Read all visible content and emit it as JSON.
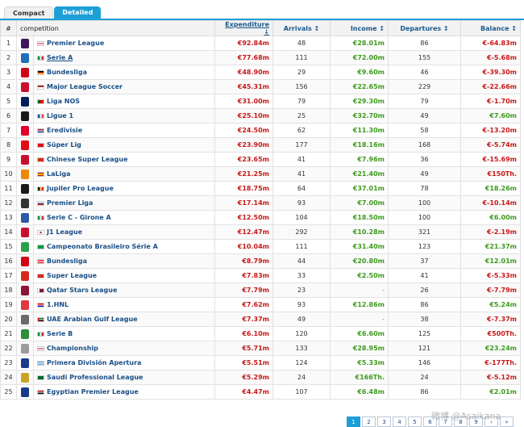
{
  "tabs": [
    "Compact",
    "Detailed"
  ],
  "headers": {
    "rank": "#",
    "competition": "competition",
    "expenditure": "Expenditure ↓",
    "arrivals": "Arrivals ↕",
    "income": "Income ↕",
    "departures": "Departures ↕",
    "balance": "Balance ↕"
  },
  "rows": [
    {
      "rank": "1",
      "name": "Premier League",
      "flag": "england",
      "logo": "#3d195b",
      "expenditure": "€92.84m",
      "arrivals": "48",
      "income": "€28.01m",
      "departures": "86",
      "balance": "€-64.83m",
      "bal": "neg"
    },
    {
      "rank": "2",
      "name": "Serie A",
      "flag": "italy",
      "logo": "#1f6fb8",
      "expenditure": "€77.68m",
      "arrivals": "111",
      "income": "€72.00m",
      "departures": "155",
      "balance": "€-5.68m",
      "bal": "neg",
      "ul": true
    },
    {
      "rank": "3",
      "name": "Bundesliga",
      "flag": "germany",
      "logo": "#d20515",
      "expenditure": "€48.90m",
      "arrivals": "29",
      "income": "€9.60m",
      "departures": "46",
      "balance": "€-39.30m",
      "bal": "neg"
    },
    {
      "rank": "4",
      "name": "Major League Soccer",
      "flag": "usa",
      "logo": "#c8102e",
      "expenditure": "€45.31m",
      "arrivals": "156",
      "income": "€22.65m",
      "departures": "229",
      "balance": "€-22.66m",
      "bal": "neg"
    },
    {
      "rank": "5",
      "name": "Liga NOS",
      "flag": "portugal",
      "logo": "#00205b",
      "expenditure": "€31.00m",
      "arrivals": "79",
      "income": "€29.30m",
      "departures": "79",
      "balance": "€-1.70m",
      "bal": "neg"
    },
    {
      "rank": "6",
      "name": "Ligue 1",
      "flag": "france",
      "logo": "#1a1a1a",
      "expenditure": "€25.10m",
      "arrivals": "25",
      "income": "€32.70m",
      "departures": "49",
      "balance": "€7.60m",
      "bal": "pos"
    },
    {
      "rank": "7",
      "name": "Eredivisie",
      "flag": "netherlands",
      "logo": "#e4002b",
      "expenditure": "€24.50m",
      "arrivals": "62",
      "income": "€11.30m",
      "departures": "58",
      "balance": "€-13.20m",
      "bal": "neg"
    },
    {
      "rank": "8",
      "name": "Süper Lig",
      "flag": "turkey",
      "logo": "#e30a17",
      "expenditure": "€23.90m",
      "arrivals": "177",
      "income": "€18.16m",
      "departures": "168",
      "balance": "€-5.74m",
      "bal": "neg"
    },
    {
      "rank": "9",
      "name": "Chinese Super League",
      "flag": "china",
      "logo": "#c8102e",
      "expenditure": "€23.65m",
      "arrivals": "41",
      "income": "€7.96m",
      "departures": "36",
      "balance": "€-15.69m",
      "bal": "neg"
    },
    {
      "rank": "10",
      "name": "LaLiga",
      "flag": "spain",
      "logo": "#ee8707",
      "expenditure": "€21.25m",
      "arrivals": "41",
      "income": "€21.40m",
      "departures": "49",
      "balance": "€150Th.",
      "bal": "neg"
    },
    {
      "rank": "11",
      "name": "Jupiler Pro League",
      "flag": "belgium",
      "logo": "#1a1a1a",
      "expenditure": "€18.75m",
      "arrivals": "64",
      "income": "€37.01m",
      "departures": "78",
      "balance": "€18.26m",
      "bal": "pos"
    },
    {
      "rank": "12",
      "name": "Premier Liga",
      "flag": "russia",
      "logo": "#333333",
      "expenditure": "€17.14m",
      "arrivals": "93",
      "income": "€7.00m",
      "departures": "100",
      "balance": "€-10.14m",
      "bal": "neg"
    },
    {
      "rank": "13",
      "name": "Serie C - Girone A",
      "flag": "italy",
      "logo": "#2b5aa6",
      "expenditure": "€12.50m",
      "arrivals": "104",
      "income": "€18.50m",
      "departures": "100",
      "balance": "€6.00m",
      "bal": "pos"
    },
    {
      "rank": "14",
      "name": "J1 League",
      "flag": "japan",
      "logo": "#c8102e",
      "expenditure": "€12.47m",
      "arrivals": "292",
      "income": "€10.28m",
      "departures": "321",
      "balance": "€-2.19m",
      "bal": "neg"
    },
    {
      "rank": "15",
      "name": "Campeonato Brasileiro Série A",
      "flag": "brazil",
      "logo": "#2aa14a",
      "expenditure": "€10.04m",
      "arrivals": "111",
      "income": "€31.40m",
      "departures": "123",
      "balance": "€21.37m",
      "bal": "pos"
    },
    {
      "rank": "16",
      "name": "Bundesliga",
      "flag": "austria",
      "logo": "#d20515",
      "expenditure": "€8.79m",
      "arrivals": "44",
      "income": "€20.80m",
      "departures": "37",
      "balance": "€12.01m",
      "bal": "pos"
    },
    {
      "rank": "17",
      "name": "Super League",
      "flag": "switzerland",
      "logo": "#d52b1e",
      "expenditure": "€7.83m",
      "arrivals": "33",
      "income": "€2.50m",
      "departures": "41",
      "balance": "€-5.33m",
      "bal": "neg"
    },
    {
      "rank": "18",
      "name": "Qatar Stars League",
      "flag": "qatar",
      "logo": "#8a1538",
      "expenditure": "€7.79m",
      "arrivals": "23",
      "income": "-",
      "departures": "26",
      "balance": "€-7.79m",
      "bal": "neg"
    },
    {
      "rank": "19",
      "name": "1.HNL",
      "flag": "croatia",
      "logo": "#e03a3e",
      "expenditure": "€7.62m",
      "arrivals": "93",
      "income": "€12.86m",
      "departures": "86",
      "balance": "€5.24m",
      "bal": "pos"
    },
    {
      "rank": "20",
      "name": "UAE Arabian Gulf League",
      "flag": "uae",
      "logo": "#6b6b6b",
      "expenditure": "€7.37m",
      "arrivals": "49",
      "income": "-",
      "departures": "38",
      "balance": "€-7.37m",
      "bal": "neg"
    },
    {
      "rank": "21",
      "name": "Serie B",
      "flag": "italy",
      "logo": "#2f8f3a",
      "expenditure": "€6.10m",
      "arrivals": "120",
      "income": "€6.60m",
      "departures": "125",
      "balance": "€500Th.",
      "bal": "neg"
    },
    {
      "rank": "22",
      "name": "Championship",
      "flag": "england",
      "logo": "#9b9b9b",
      "expenditure": "€5.71m",
      "arrivals": "133",
      "income": "€28.95m",
      "departures": "121",
      "balance": "€23.24m",
      "bal": "pos"
    },
    {
      "rank": "23",
      "name": "Primera División Apertura",
      "flag": "argentina",
      "logo": "#1b3a8a",
      "expenditure": "€5.51m",
      "arrivals": "124",
      "income": "€5.33m",
      "departures": "146",
      "balance": "€-177Th.",
      "bal": "neg"
    },
    {
      "rank": "24",
      "name": "Saudi Professional League",
      "flag": "saudi",
      "logo": "#c9a227",
      "expenditure": "€5.29m",
      "arrivals": "24",
      "income": "€166Th.",
      "departures": "24",
      "balance": "€-5.12m",
      "bal": "neg"
    },
    {
      "rank": "25",
      "name": "Egyptian Premier League",
      "flag": "egypt",
      "logo": "#1b3a8a",
      "expenditure": "€4.47m",
      "arrivals": "107",
      "income": "€6.48m",
      "departures": "86",
      "balance": "€2.01m",
      "bal": "pos"
    }
  ],
  "pagination": [
    "1",
    "2",
    "3",
    "4",
    "5",
    "6",
    "7",
    "8",
    "9",
    "›",
    "»"
  ],
  "pagination_current": "1",
  "watermark": "微博 @Asaikana",
  "colors": {
    "accent": "#1d9fd6",
    "negative": "#c61818",
    "positive": "#3d9a1e",
    "link": "#1a4f86"
  }
}
